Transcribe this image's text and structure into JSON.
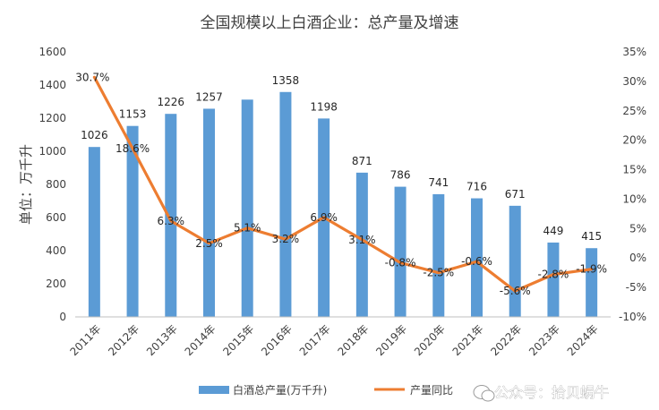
{
  "chart_data": {
    "type": "bar",
    "title": "全国规模以上白酒企业：总产量及增速",
    "ylabel": "单位：万千升",
    "categories": [
      "2011年",
      "2012年",
      "2013年",
      "2014年",
      "2015年",
      "2016年",
      "2017年",
      "2018年",
      "2019年",
      "2020年",
      "2021年",
      "2022年",
      "2023年",
      "2024年"
    ],
    "series": [
      {
        "name": "白酒总产量(万千升)",
        "type": "bar",
        "axis": "left",
        "color": "#5b9bd5",
        "values": [
          1026,
          1153,
          1226,
          1257,
          1312,
          1358,
          1198,
          871,
          786,
          741,
          716,
          671,
          449,
          415
        ],
        "labels": [
          "1026",
          "1153",
          "1226",
          "1257",
          "",
          "1358",
          "1198",
          "871",
          "786",
          "741",
          "716",
          "671",
          "449",
          "415"
        ]
      },
      {
        "name": "产量同比",
        "type": "line",
        "axis": "right",
        "color": "#ed7d31",
        "values": [
          30.7,
          18.6,
          6.3,
          2.5,
          5.1,
          3.2,
          6.9,
          3.1,
          -0.8,
          -2.5,
          -0.6,
          -5.6,
          -2.8,
          -1.9
        ],
        "labels": [
          "30.7%",
          "18.6%",
          "6.3%",
          "2.5%",
          "5.1%",
          "3.2%",
          "6.9%",
          "3.1%",
          "-0.8%",
          "-2.5%",
          "-0.6%",
          "-5.6%",
          "-2.8%",
          "-1.9%"
        ]
      }
    ],
    "ylim": [
      0,
      1600
    ],
    "yticks": [
      "0",
      "200",
      "400",
      "600",
      "800",
      "1000",
      "1200",
      "1400",
      "1600"
    ],
    "y2lim": [
      -10,
      35
    ],
    "y2ticks": [
      "-10%",
      "-5%",
      "0%",
      "5%",
      "10%",
      "15%",
      "20%",
      "25%",
      "30%",
      "35%"
    ],
    "grid": false,
    "legend": "bottom"
  },
  "watermark": "公众号：拾贝蜗牛",
  "icons": [
    "wechat-icon"
  ]
}
